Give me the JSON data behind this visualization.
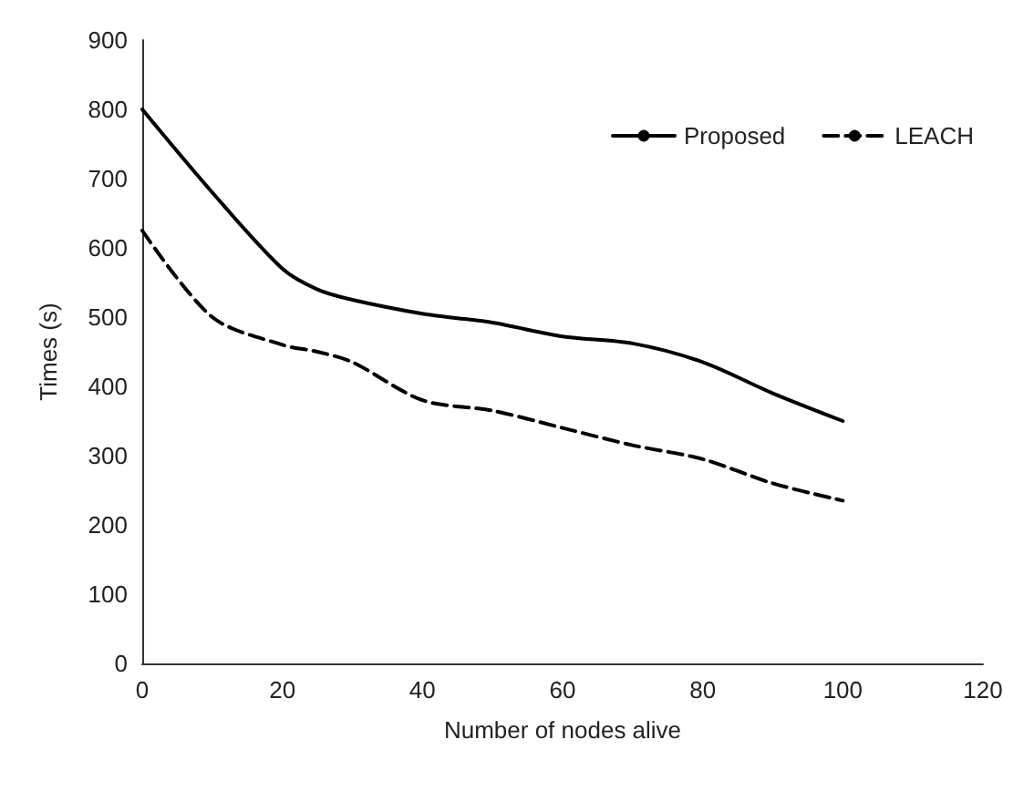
{
  "chart_data": {
    "type": "line",
    "xlabel": "Number of nodes alive",
    "ylabel": "Times (s)",
    "x": [
      0,
      10,
      20,
      25,
      30,
      40,
      50,
      60,
      70,
      80,
      90,
      100
    ],
    "series": [
      {
        "name": "Proposed",
        "color": "#000000",
        "line_style": "solid",
        "values": [
          800,
          680,
          570,
          540,
          525,
          505,
          492,
          472,
          462,
          435,
          390,
          350
        ]
      },
      {
        "name": "LEACH",
        "color": "#000000",
        "line_style": "dashed",
        "values": [
          625,
          500,
          460,
          450,
          435,
          380,
          365,
          340,
          315,
          295,
          260,
          235
        ]
      }
    ],
    "xlim": [
      0,
      120
    ],
    "xticks": [
      0,
      20,
      40,
      60,
      80,
      100,
      120
    ],
    "ylim": [
      0,
      900
    ],
    "yticks": [
      0,
      100,
      200,
      300,
      400,
      500,
      600,
      700,
      800,
      900
    ],
    "grid": false,
    "legend": "top right",
    "marker": "none"
  }
}
